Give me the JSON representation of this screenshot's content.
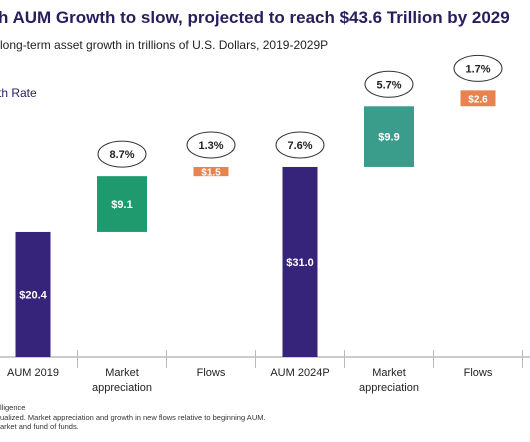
{
  "chart_data": {
    "type": "waterfall",
    "title": "h AUM Growth to slow, projected to reach $43.6 Trillion by 2029",
    "subtitle": "long-term asset growth in trillions of U.S. Dollars, 2019-2029P",
    "legend_label": "th Rate",
    "categories": [
      "AUM 2019",
      "Market appreciation",
      "Flows",
      "AUM 2024P",
      "Market appreciation",
      "Flows"
    ],
    "values": [
      20.4,
      9.1,
      1.5,
      31.0,
      9.9,
      2.6
    ],
    "value_labels": [
      "$20.4",
      "$9.1",
      "$1.5",
      "$31.0",
      "$9.9",
      "$2.6"
    ],
    "growth_rates": [
      null,
      "8.7%",
      "1.3%",
      "7.6%",
      "5.7%",
      "1.7%"
    ],
    "totals": [
      true,
      false,
      false,
      true,
      false,
      false
    ],
    "colors": [
      "#35247a",
      "#1f9a6e",
      "#e8834f",
      "#35247a",
      "#3a9d8c",
      "#e8834f"
    ],
    "footnotes": [
      "lligence",
      "ualized. Market appreciation and growth in new flows relative to beginning AUM.",
      "arket and fund of funds."
    ]
  }
}
